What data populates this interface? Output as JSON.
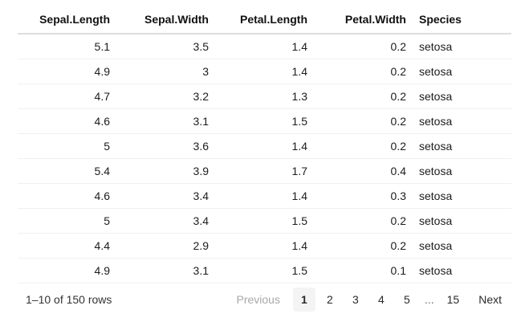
{
  "table": {
    "columns": [
      {
        "label": "Sepal.Length",
        "align": "right"
      },
      {
        "label": "Sepal.Width",
        "align": "right"
      },
      {
        "label": "Petal.Length",
        "align": "right"
      },
      {
        "label": "Petal.Width",
        "align": "right"
      },
      {
        "label": "Species",
        "align": "left"
      }
    ],
    "rows": [
      [
        "5.1",
        "3.5",
        "1.4",
        "0.2",
        "setosa"
      ],
      [
        "4.9",
        "3",
        "1.4",
        "0.2",
        "setosa"
      ],
      [
        "4.7",
        "3.2",
        "1.3",
        "0.2",
        "setosa"
      ],
      [
        "4.6",
        "3.1",
        "1.5",
        "0.2",
        "setosa"
      ],
      [
        "5",
        "3.6",
        "1.4",
        "0.2",
        "setosa"
      ],
      [
        "5.4",
        "3.9",
        "1.7",
        "0.4",
        "setosa"
      ],
      [
        "4.6",
        "3.4",
        "1.4",
        "0.3",
        "setosa"
      ],
      [
        "5",
        "3.4",
        "1.5",
        "0.2",
        "setosa"
      ],
      [
        "4.4",
        "2.9",
        "1.4",
        "0.2",
        "setosa"
      ],
      [
        "4.9",
        "3.1",
        "1.5",
        "0.1",
        "setosa"
      ]
    ]
  },
  "pagination": {
    "info": "1–10 of 150 rows",
    "previous_label": "Previous",
    "next_label": "Next",
    "current_page": "1",
    "pages": [
      "1",
      "2",
      "3",
      "4",
      "5",
      "...",
      "15"
    ]
  },
  "colors": {
    "background": "#ffffff",
    "text": "#1c1c1c",
    "header_border": "#dedede",
    "row_border": "#f0f0f0",
    "disabled_text": "#a8a8a8",
    "current_page_background": "#f4f4f4"
  }
}
